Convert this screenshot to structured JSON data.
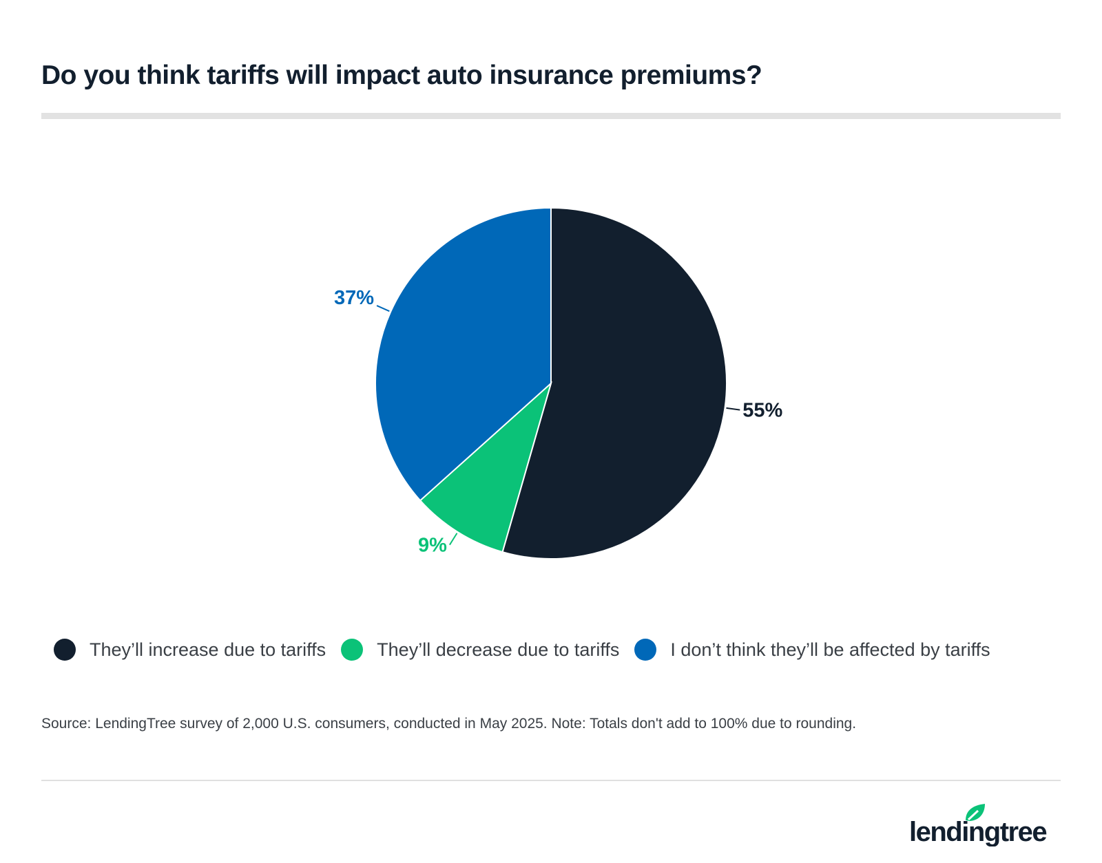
{
  "title": "Do you think tariffs will impact auto insurance premiums?",
  "chart_data": {
    "type": "pie",
    "title": "Do you think tariffs will impact auto insurance premiums?",
    "categories": [
      "They’ll increase due to tariffs",
      "They’ll decrease due to tariffs",
      "I don’t think they’ll be affected by tariffs"
    ],
    "values": [
      55,
      9,
      37
    ],
    "labels": [
      "55%",
      "9%",
      "37%"
    ],
    "colors": [
      "#121f2e",
      "#0bc278",
      "#0068b8"
    ],
    "legend_placement": "bottom"
  },
  "source": "Source: LendingTree survey of 2,000 U.S. consumers, conducted in May 2025. Note: Totals don't add to 100% due to rounding.",
  "logo": "lendingtree"
}
